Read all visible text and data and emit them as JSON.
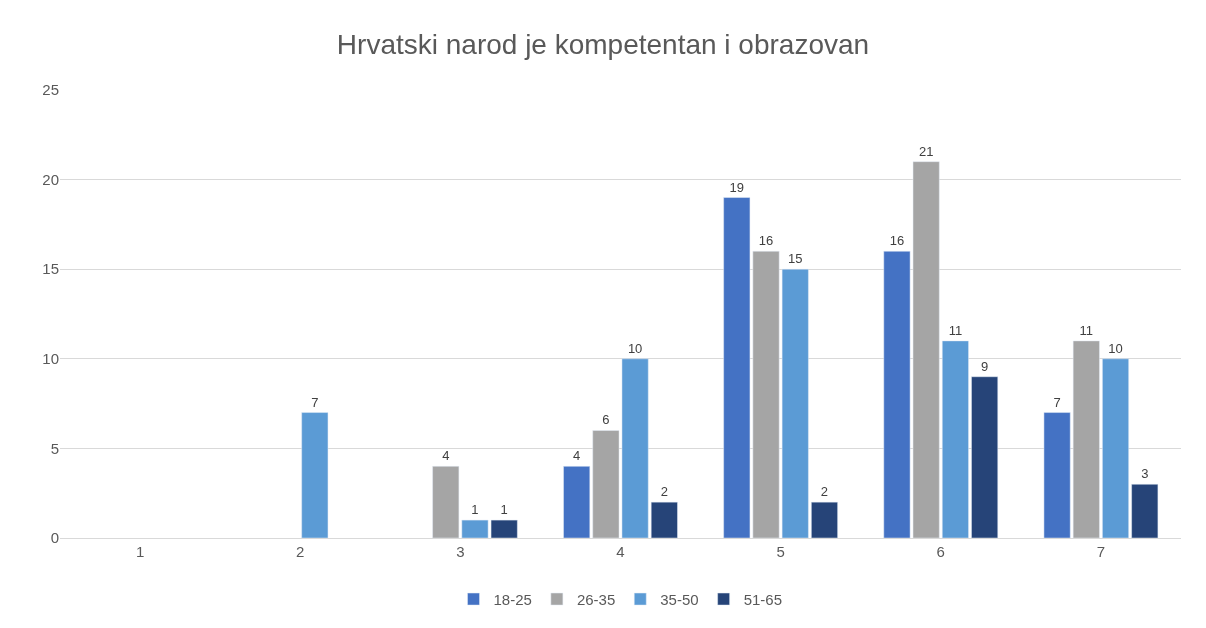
{
  "chart_data": {
    "type": "bar",
    "title": "Hrvatski narod je kompetentan i obrazovan",
    "categories": [
      "1",
      "2",
      "3",
      "4",
      "5",
      "6",
      "7"
    ],
    "series": [
      {
        "name": "18-25",
        "color": "#4472c4",
        "values": [
          null,
          null,
          null,
          4,
          19,
          16,
          7
        ],
        "value_labels": [
          null,
          null,
          null,
          "4",
          "19",
          "16",
          "7"
        ]
      },
      {
        "name": "26-35",
        "color": "#a5a5a5",
        "values": [
          null,
          null,
          4,
          6,
          16,
          21,
          11
        ],
        "value_labels": [
          null,
          null,
          "4",
          "6",
          "16",
          "21",
          "11"
        ]
      },
      {
        "name": "35-50",
        "color": "#5b9bd5",
        "values": [
          null,
          7,
          1,
          10,
          15,
          11,
          10
        ],
        "value_labels": [
          null,
          "7",
          "1",
          "10",
          "15",
          "11",
          "10"
        ]
      },
      {
        "name": "51-65",
        "color": "#264478",
        "values": [
          null,
          null,
          1,
          2,
          2,
          9,
          3
        ],
        "value_labels": [
          null,
          null,
          "1",
          "2",
          "2",
          "9",
          "3"
        ]
      }
    ],
    "ylim": [
      0,
      25
    ],
    "yticks": [
      0,
      5,
      10,
      15,
      20,
      25
    ],
    "grid": "y",
    "legend": "bottom"
  }
}
